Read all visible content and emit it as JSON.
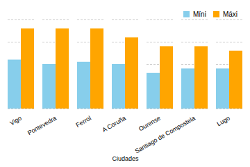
{
  "chart_data": {
    "type": "bar",
    "categories": [
      "Vigo",
      "Pontevedra",
      "Ferrol",
      "A Coruña",
      "Ourense",
      "Santiago de Compostela",
      "Lugo"
    ],
    "series": [
      {
        "name": "Míni",
        "color": "#87CEEB",
        "values": [
          11,
          10,
          10.5,
          10,
          8,
          9,
          9
        ]
      },
      {
        "name": "Máxi",
        "color": "#FFA500",
        "values": [
          18,
          18,
          18,
          16,
          14,
          14,
          13
        ]
      }
    ],
    "xlabel": "Ciudades",
    "ylim": [
      0,
      20
    ],
    "yticks": [
      0,
      5,
      10,
      15,
      20
    ],
    "grid": true,
    "legend": "upper right",
    "tick_labels": "x"
  }
}
